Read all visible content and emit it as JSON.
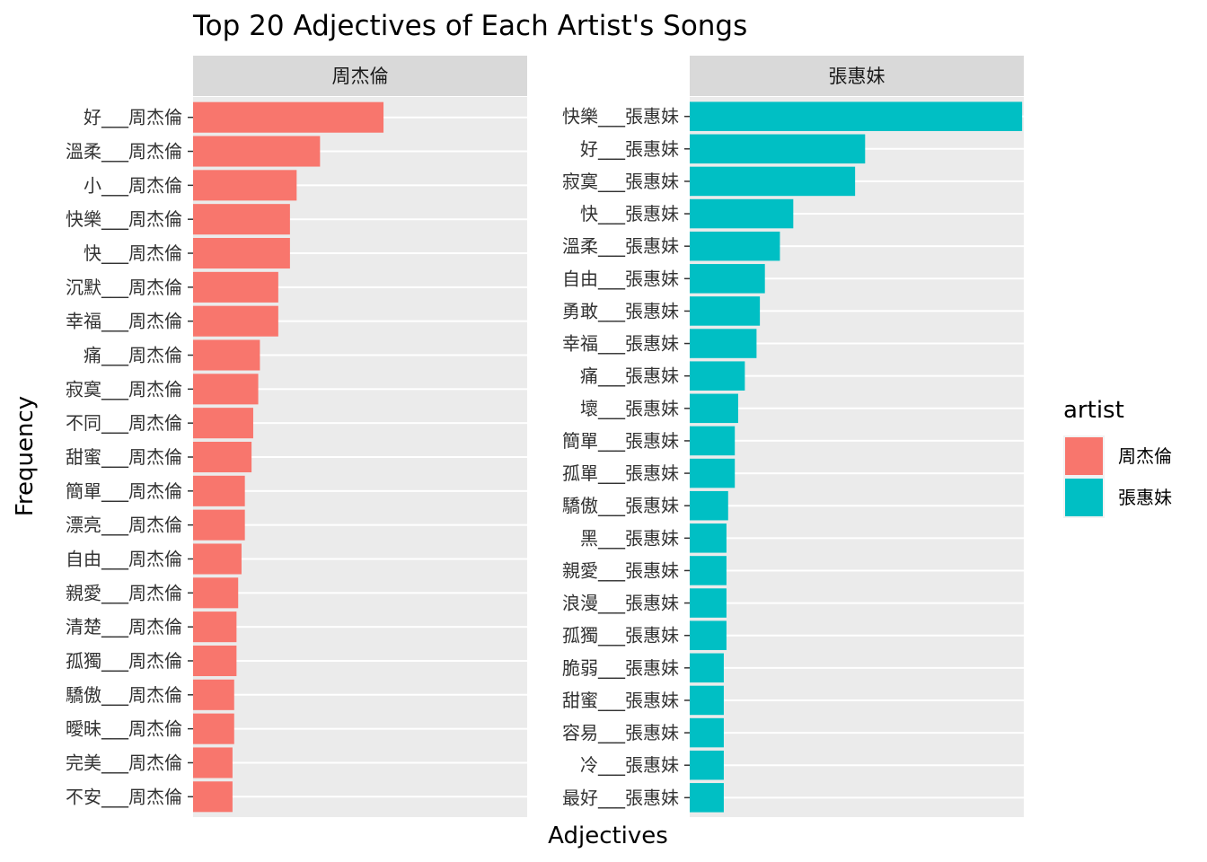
{
  "chart_data": {
    "type": "bar",
    "orientation": "horizontal",
    "facet": true,
    "title": "Top 20 Adjectives of Each Artist's Songs",
    "xlabel": "Adjectives",
    "ylabel": "Frequency",
    "grid": true,
    "value_axis_labels": false,
    "legend": {
      "title": "artist",
      "position": "right",
      "entries": [
        {
          "label": "周杰倫",
          "color": "#F8766D"
        },
        {
          "label": "張惠妹",
          "color": "#00BFC4"
        }
      ]
    },
    "panels": [
      {
        "strip": "周杰倫",
        "color": "#F8766D",
        "xlim": [
          0,
          100
        ],
        "categories": [
          "好___周杰倫",
          "溫柔___周杰倫",
          "小___周杰倫",
          "快樂___周杰倫",
          "快___周杰倫",
          "沉默___周杰倫",
          "幸福___周杰倫",
          "痛___周杰倫",
          "寂寞___周杰倫",
          "不同___周杰倫",
          "甜蜜___周杰倫",
          "簡單___周杰倫",
          "漂亮___周杰倫",
          "自由___周杰倫",
          "親愛___周杰倫",
          "清楚___周杰倫",
          "孤獨___周杰倫",
          "驕傲___周杰倫",
          "曖昧___周杰倫",
          "完美___周杰倫",
          "不安___周杰倫"
        ],
        "values": [
          57,
          38,
          31,
          29,
          29,
          25.5,
          25.5,
          20,
          19.5,
          18,
          17.5,
          15.5,
          15.5,
          14.5,
          13.5,
          13,
          13,
          12.3,
          12.3,
          11.8,
          11.8
        ]
      },
      {
        "strip": "張惠妹",
        "color": "#00BFC4",
        "xlim": [
          0,
          100
        ],
        "categories": [
          "快樂___張惠妹",
          "好___張惠妹",
          "寂寞___張惠妹",
          "快___張惠妹",
          "溫柔___張惠妹",
          "自由___張惠妹",
          "勇敢___張惠妹",
          "幸福___張惠妹",
          "痛___張惠妹",
          "壞___張惠妹",
          "簡單___張惠妹",
          "孤單___張惠妹",
          "驕傲___張惠妹",
          "黑___張惠妹",
          "親愛___張惠妹",
          "浪漫___張惠妹",
          "孤獨___張惠妹",
          "脆弱___張惠妹",
          "甜蜜___張惠妹",
          "容易___張惠妹",
          "冷___張惠妹",
          "最好___張惠妹"
        ],
        "values": [
          99.5,
          52.5,
          49.5,
          31,
          27,
          22.5,
          21,
          20,
          16.5,
          14.5,
          13.5,
          13.5,
          11.5,
          11,
          11,
          11,
          11,
          10.2,
          10.2,
          10.2,
          10.2,
          10.2
        ]
      }
    ]
  }
}
